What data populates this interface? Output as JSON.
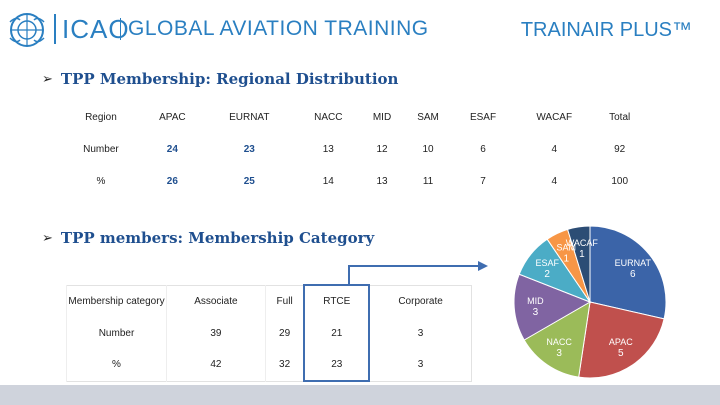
{
  "header": {
    "org_abbr": "ICAO",
    "brand_title": "GLOBAL AVIATION TRAINING",
    "program_name": "TRAINAIR PLUS™",
    "brand_color": "#2a7fc1"
  },
  "section1": {
    "bullet_icon": "arrow-bullet-icon",
    "title": "TPP Membership: Regional Distribution"
  },
  "region_table": {
    "columns": [
      "Region",
      "APAC",
      "EURNAT",
      "NACC",
      "MID",
      "SAM",
      "ESAF",
      "WACAF",
      "Total"
    ],
    "rows": [
      [
        "Number",
        "24",
        "23",
        "13",
        "12",
        "10",
        "6",
        "4",
        "92"
      ],
      [
        "%",
        "26",
        "25",
        "14",
        "13",
        "11",
        "7",
        "4",
        "100"
      ]
    ]
  },
  "section2": {
    "bullet_icon": "arrow-bullet-icon",
    "title": "TPP members:  Membership Category"
  },
  "category_table": {
    "columns": [
      "Membership category",
      "Associate",
      "Full",
      "RTCE",
      "Corporate"
    ],
    "rows": [
      [
        "Number",
        "39",
        "29",
        "21",
        "3"
      ],
      [
        "%",
        "42",
        "32",
        "23",
        "3"
      ]
    ]
  },
  "chart_data": {
    "type": "pie",
    "title": "",
    "slices": [
      {
        "name": "EURNAT",
        "value": 6,
        "color": "#3b64a8"
      },
      {
        "name": "APAC",
        "value": 5,
        "color": "#c0504d"
      },
      {
        "name": "NACC",
        "value": 3,
        "color": "#9bbb59"
      },
      {
        "name": "MID",
        "value": 3,
        "color": "#8064a2"
      },
      {
        "name": "ESAF",
        "value": 2,
        "color": "#4bacc6"
      },
      {
        "name": "SAM",
        "value": 1,
        "color": "#f79646"
      },
      {
        "name": "WACAF",
        "value": 1,
        "color": "#2c4d75"
      }
    ],
    "labels": [
      {
        "name": "EURNAT",
        "value": "6"
      },
      {
        "name": "APAC",
        "value": "5"
      },
      {
        "name": "NACC",
        "value": "3"
      },
      {
        "name": "MID",
        "value": "3"
      },
      {
        "name": "ESAF",
        "value": "2"
      },
      {
        "name": "SAM",
        "value": "1"
      },
      {
        "name": "WACAF",
        "value": "1"
      }
    ]
  },
  "colors": {
    "title_blue": "#1f4f8f",
    "highlight_border": "#3f6db0",
    "footer_bar": "#cfd3dc"
  }
}
